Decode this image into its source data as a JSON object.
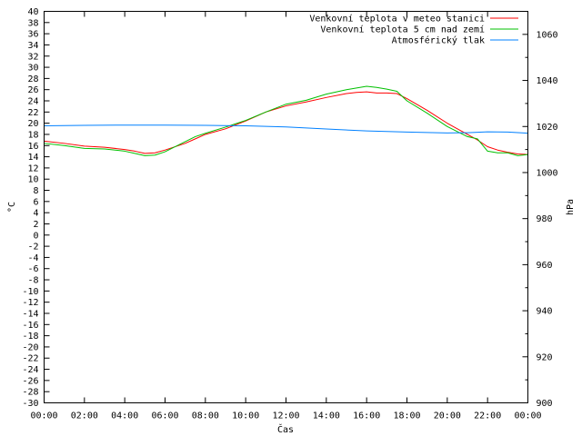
{
  "chart_data": {
    "type": "line",
    "xlabel": "Čas",
    "ylabel": "°C",
    "y2label": "hPa",
    "xlim": [
      0,
      24
    ],
    "ylim": [
      -30,
      40
    ],
    "y2lim": [
      900,
      1070
    ],
    "x_ticks": [
      "00:00",
      "02:00",
      "04:00",
      "06:00",
      "08:00",
      "10:00",
      "12:00",
      "14:00",
      "16:00",
      "18:00",
      "20:00",
      "22:00",
      "00:00"
    ],
    "y_ticks": [
      40,
      38,
      36,
      34,
      32,
      30,
      28,
      26,
      24,
      22,
      20,
      18,
      16,
      14,
      12,
      10,
      8,
      6,
      4,
      2,
      0,
      -2,
      -4,
      -6,
      -8,
      -10,
      -12,
      -14,
      -16,
      -18,
      -20,
      -22,
      -24,
      -26,
      -28,
      -30
    ],
    "y2_ticks": [
      1060,
      1040,
      1020,
      1000,
      980,
      960,
      940,
      920,
      900
    ],
    "grid": false,
    "legend_position": "top-right",
    "series": [
      {
        "name": "Venkovní teplota v meteo stanici",
        "color": "#ff0000",
        "axis": "y",
        "x": [
          0,
          1,
          2,
          3,
          4,
          4.5,
          5,
          5.5,
          6,
          7,
          7.5,
          8,
          9,
          10,
          11,
          12,
          13,
          14,
          15,
          15.5,
          16,
          16.5,
          17,
          17.5,
          18,
          19,
          20,
          21,
          21.5,
          22,
          22.5,
          23,
          23.5,
          24
        ],
        "y": [
          16.8,
          16.4,
          15.9,
          15.7,
          15.3,
          15,
          14.6,
          14.7,
          15.2,
          16.4,
          17.2,
          18,
          19,
          20.4,
          22,
          23.1,
          23.8,
          24.6,
          25.3,
          25.5,
          25.6,
          25.4,
          25.4,
          25.3,
          24.4,
          22.3,
          20,
          18,
          17,
          15.8,
          15.2,
          14.8,
          14.5,
          14.4
        ]
      },
      {
        "name": "Venkovní teplota 5 cm nad zemí",
        "color": "#00c000",
        "axis": "y",
        "x": [
          0,
          1,
          2,
          3,
          4,
          4.5,
          5,
          5.5,
          6,
          7,
          7.5,
          8,
          9,
          10,
          11,
          12,
          13,
          14,
          15,
          15.5,
          16,
          16.5,
          17,
          17.5,
          18,
          19,
          20,
          21,
          21.5,
          22,
          22.5,
          23,
          23.5,
          24
        ],
        "y": [
          16.4,
          16,
          15.5,
          15.4,
          15,
          14.6,
          14.2,
          14.3,
          14.9,
          16.7,
          17.6,
          18.2,
          19.3,
          20.5,
          22,
          23.4,
          24.1,
          25.2,
          26,
          26.3,
          26.6,
          26.4,
          26.1,
          25.7,
          24,
          21.8,
          19.4,
          17.6,
          17.2,
          15,
          14.7,
          14.7,
          14.2,
          14.4
        ]
      },
      {
        "name": "Atmosférický tlak",
        "color": "#0080ff",
        "axis": "y2",
        "x": [
          0,
          2,
          4,
          6,
          8,
          10,
          12,
          14,
          16,
          18,
          20,
          21,
          22,
          23,
          24
        ],
        "y": [
          1020.3,
          1020.5,
          1020.6,
          1020.6,
          1020.5,
          1020.3,
          1019.8,
          1018.9,
          1018.1,
          1017.6,
          1017.2,
          1017.3,
          1017.7,
          1017.6,
          1017.1
        ]
      }
    ]
  }
}
